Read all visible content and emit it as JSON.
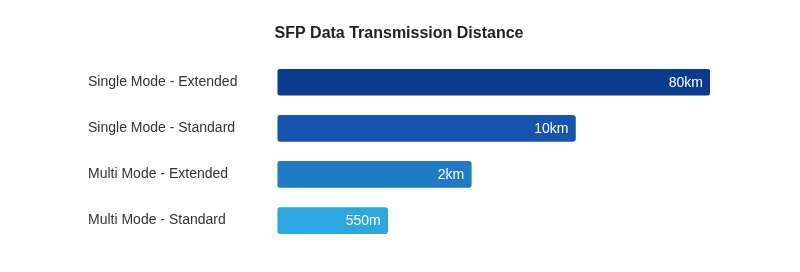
{
  "chart_data": {
    "type": "bar",
    "title": "SFP Data Transmission Distance",
    "orientation": "horizontal",
    "categories": [
      "Single Mode - Extended",
      "Single Mode - Standard",
      "Multi Mode - Extended",
      "Multi Mode - Standard"
    ],
    "values": [
      80,
      10,
      2,
      0.55
    ],
    "value_labels": [
      "80km",
      "10km",
      "2km",
      "550m"
    ],
    "colors": [
      "#0b3b8c",
      "#1654b0",
      "#1f7bc6",
      "#2ba8df"
    ],
    "log": "x",
    "xlim": [
      0.1,
      80
    ],
    "grid": false,
    "data_labels": true,
    "tick_labels": "y"
  }
}
